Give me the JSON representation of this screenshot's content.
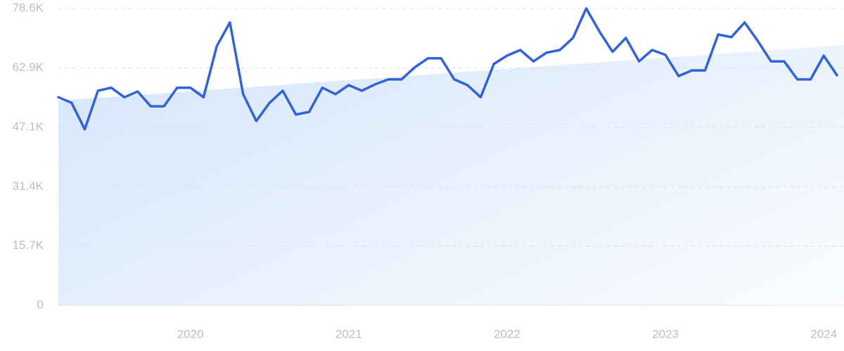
{
  "chart_data": {
    "type": "line",
    "categories": [
      null,
      null,
      null,
      null,
      null,
      null,
      null,
      null,
      null,
      null,
      "2020",
      null,
      null,
      null,
      null,
      null,
      null,
      null,
      null,
      null,
      null,
      null,
      "2021",
      null,
      null,
      null,
      null,
      null,
      null,
      null,
      null,
      null,
      null,
      null,
      "2022",
      null,
      null,
      null,
      null,
      null,
      null,
      null,
      null,
      null,
      null,
      null,
      "2023",
      null,
      null,
      null,
      null,
      null,
      null,
      null,
      null,
      null,
      null,
      null,
      "2024",
      null
    ],
    "values": [
      55100,
      53600,
      46600,
      56800,
      57600,
      55100,
      56600,
      52700,
      52700,
      57600,
      57600,
      55100,
      68600,
      74900,
      55900,
      48800,
      53600,
      56800,
      50500,
      51200,
      57600,
      55900,
      58300,
      56800,
      58500,
      59800,
      59800,
      63000,
      65400,
      65400,
      59800,
      58300,
      55100,
      63900,
      66100,
      67600,
      64600,
      66900,
      67600,
      70800,
      78600,
      72500,
      67100,
      70800,
      64600,
      67600,
      66300,
      60700,
      62200,
      62200,
      71700,
      71000,
      74900,
      70000,
      64600,
      64600,
      59800,
      59800,
      66100,
      60900
    ],
    "color": "#3262d9",
    "trend": [
      54200,
      68900
    ],
    "ylim": [
      0,
      78600
    ],
    "yticks": [
      0,
      {
        "value": 15700,
        "label": "15.7K"
      },
      {
        "value": 31400,
        "label": "31.4K"
      },
      {
        "value": 47100,
        "label": "47.1K"
      },
      {
        "value": 62900,
        "label": "62.9K"
      },
      {
        "value": 78600,
        "label": "78.6K"
      }
    ],
    "grid": true
  }
}
